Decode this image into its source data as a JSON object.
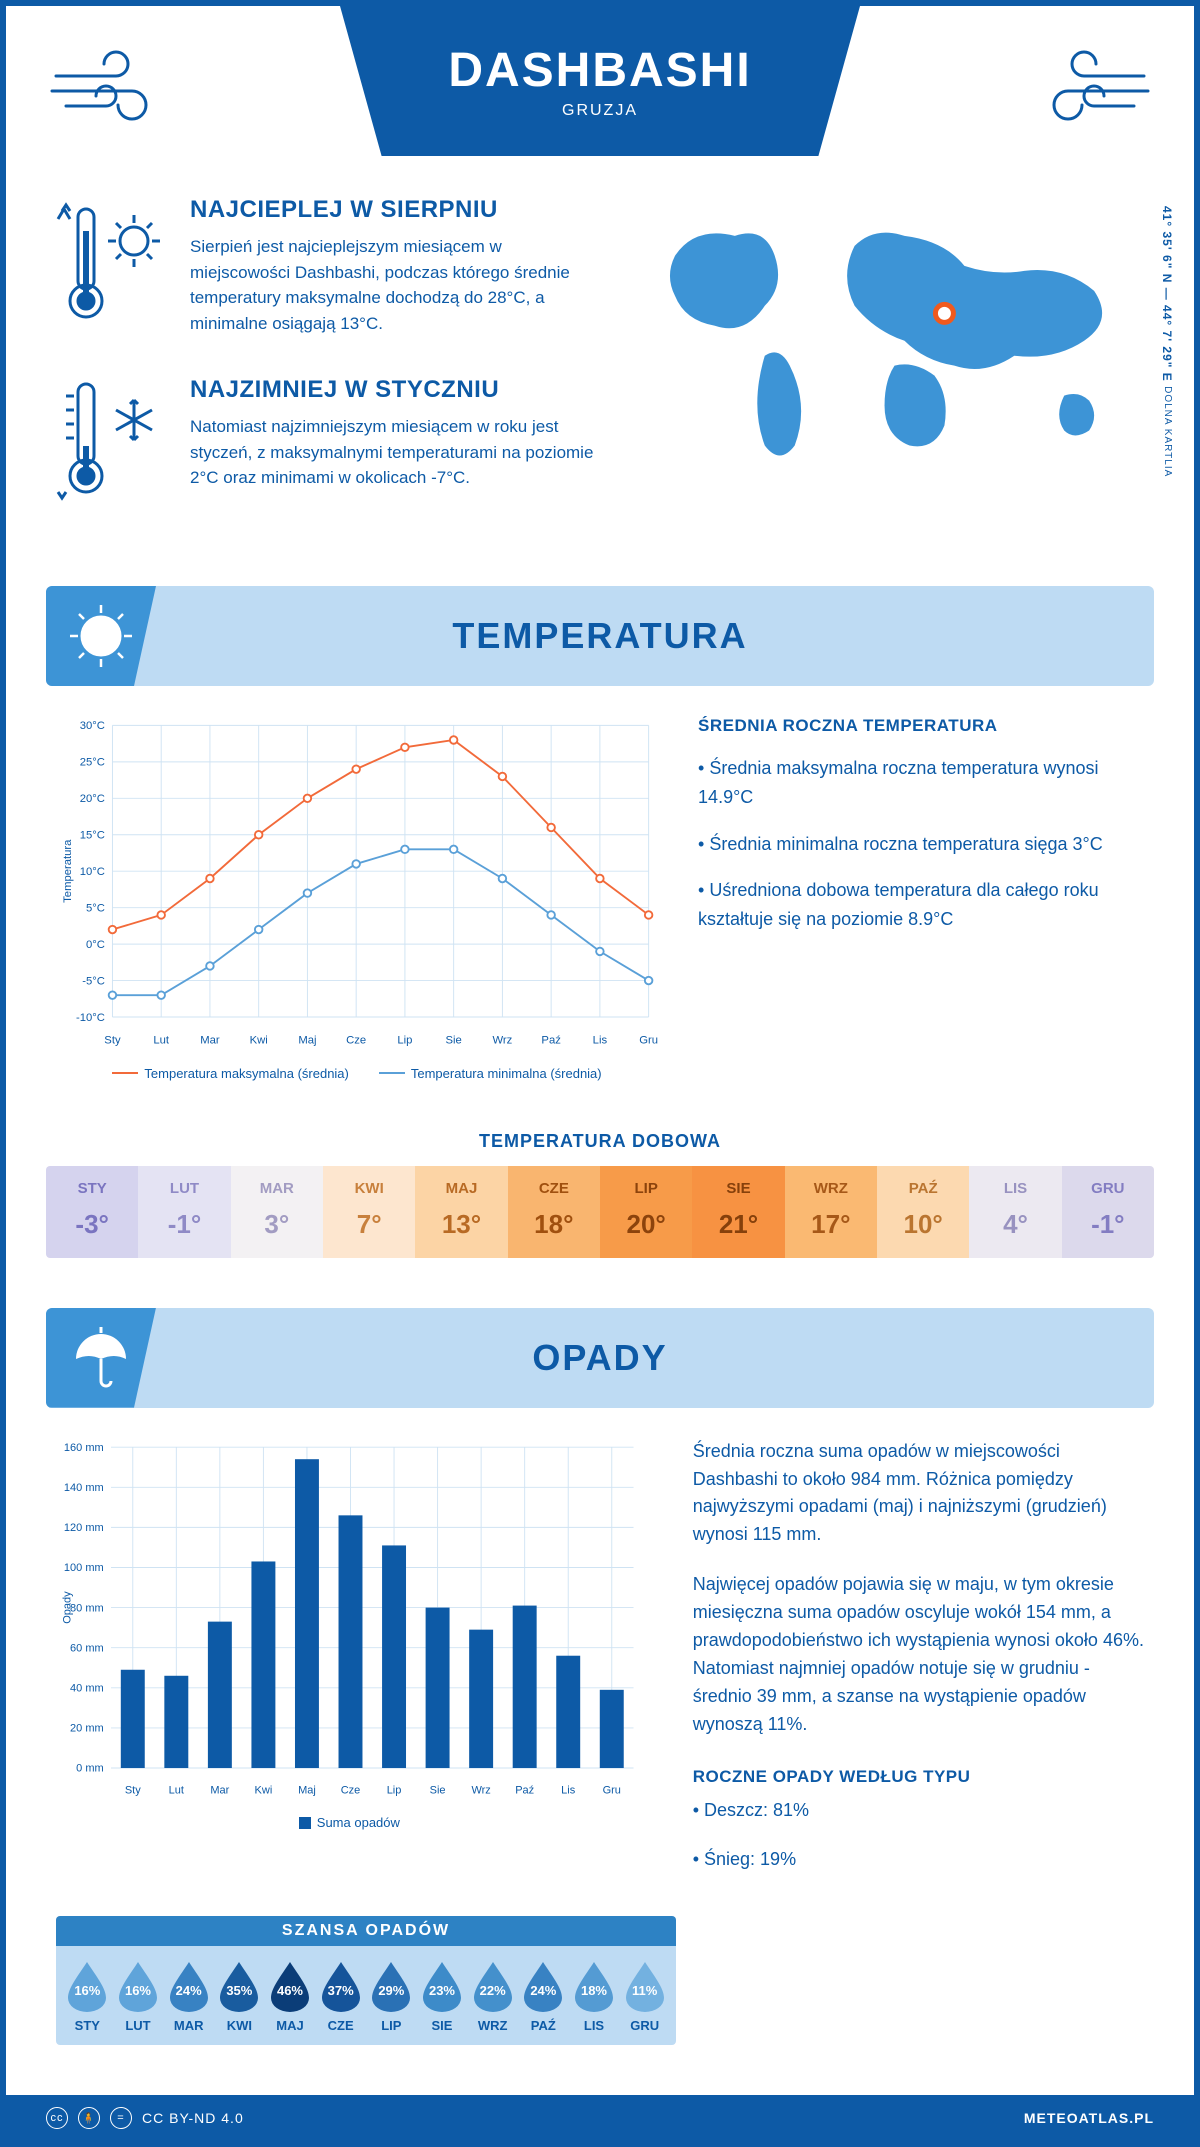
{
  "colors": {
    "primary": "#0d5aa6",
    "light_blue": "#bedbf3",
    "mid_blue": "#3d94d6",
    "accent_orange": "#f05a1e",
    "chart_orange": "#f26a3a",
    "chart_lblue": "#5aa0d8",
    "grid": "#cfe3f3"
  },
  "header": {
    "title": "DASHBASHI",
    "subtitle": "GRUZJA"
  },
  "facts": {
    "hot": {
      "title": "NAJCIEPLEJ W SIERPNIU",
      "text": "Sierpień jest najcieplejszym miesiącem w miejscowości Dashbashi, podczas którego średnie temperatury maksymalne dochodzą do 28°C, a minimalne osiągają 13°C."
    },
    "cold": {
      "title": "NAJZIMNIEJ W STYCZNIU",
      "text": "Natomiast najzimniejszym miesiącem w roku jest styczeń, z maksymalnymi temperaturami na poziomie 2°C oraz minimami w okolicach -7°C."
    }
  },
  "map": {
    "coords": "41° 35' 6\" N — 44° 7' 29\" E",
    "region": "DOLNA KARTLIA",
    "marker_x": 0.6,
    "marker_y": 0.42
  },
  "temperature_section": {
    "title": "TEMPERATURA",
    "stats_title": "ŚREDNIA ROCZNA TEMPERATURA",
    "stats": [
      "• Średnia maksymalna roczna temperatura wynosi 14.9°C",
      "• Średnia minimalna roczna temperatura sięga 3°C",
      "• Uśredniona dobowa temperatura dla całego roku kształtuje się na poziomie 8.9°C"
    ],
    "chart": {
      "months": [
        "Sty",
        "Lut",
        "Mar",
        "Kwi",
        "Maj",
        "Cze",
        "Lip",
        "Sie",
        "Wrz",
        "Paź",
        "Lis",
        "Gru"
      ],
      "ymin": -10,
      "ymax": 30,
      "ytick": 5,
      "ylabel": "Temperatura",
      "max_series": {
        "label": "Temperatura maksymalna (średnia)",
        "color": "#f26a3a",
        "values": [
          2,
          4,
          9,
          15,
          20,
          24,
          27,
          28,
          23,
          16,
          9,
          4
        ]
      },
      "min_series": {
        "label": "Temperatura minimalna (średnia)",
        "color": "#5aa0d8",
        "values": [
          -7,
          -7,
          -3,
          2,
          7,
          11,
          13,
          13,
          9,
          4,
          -1,
          -5
        ]
      }
    },
    "dobowa_title": "TEMPERATURA DOBOWA",
    "dobowa": {
      "months": [
        "STY",
        "LUT",
        "MAR",
        "KWI",
        "MAJ",
        "CZE",
        "LIP",
        "SIE",
        "WRZ",
        "PAŹ",
        "LIS",
        "GRU"
      ],
      "values": [
        "-3°",
        "-1°",
        "3°",
        "7°",
        "13°",
        "18°",
        "20°",
        "21°",
        "17°",
        "10°",
        "4°",
        "-1°"
      ],
      "cell_bg": [
        "#d5d3ee",
        "#e4e3f3",
        "#f3f1f3",
        "#fde6cf",
        "#fcd4a5",
        "#f9b56f",
        "#f79b49",
        "#f79242",
        "#fab972",
        "#fcd9b0",
        "#ece9f1",
        "#dcd9ec"
      ],
      "cell_fg": [
        "#7a74c0",
        "#8f8ac6",
        "#a29cc2",
        "#c8803c",
        "#b86a24",
        "#a0500f",
        "#8c430c",
        "#86400b",
        "#a65818",
        "#ba7530",
        "#9892c0",
        "#837dc2"
      ]
    }
  },
  "precip_section": {
    "title": "OPADY",
    "text1": "Średnia roczna suma opadów w miejscowości Dashbashi to około 984 mm. Różnica pomiędzy najwyższymi opadami (maj) i najniższymi (grudzień) wynosi 115 mm.",
    "text2": "Najwięcej opadów pojawia się w maju, w tym okresie miesięczna suma opadów oscyluje wokół 154 mm, a prawdopodobieństwo ich wystąpienia wynosi około 46%. Natomiast najmniej opadów notuje się w grudniu - średnio 39 mm, a szanse na wystąpienie opadów wynoszą 11%.",
    "type_title": "ROCZNE OPADY WEDŁUG TYPU",
    "types": [
      "• Deszcz: 81%",
      "• Śnieg: 19%"
    ],
    "chart": {
      "months": [
        "Sty",
        "Lut",
        "Mar",
        "Kwi",
        "Maj",
        "Cze",
        "Lip",
        "Sie",
        "Wrz",
        "Paź",
        "Lis",
        "Gru"
      ],
      "ymin": 0,
      "ymax": 160,
      "ytick": 20,
      "ylabel": "Opady",
      "legend": "Suma opadów",
      "values": [
        49,
        46,
        73,
        103,
        154,
        126,
        111,
        80,
        69,
        81,
        56,
        39
      ],
      "bar_color": "#0d5aa6"
    },
    "chance": {
      "title": "SZANSA OPADÓW",
      "months": [
        "STY",
        "LUT",
        "MAR",
        "KWI",
        "MAJ",
        "CZE",
        "LIP",
        "SIE",
        "WRZ",
        "PAŹ",
        "LIS",
        "GRU"
      ],
      "values": [
        "16%",
        "16%",
        "24%",
        "35%",
        "46%",
        "37%",
        "29%",
        "23%",
        "22%",
        "24%",
        "18%",
        "11%"
      ],
      "fill": [
        "#5fa4da",
        "#5fa4da",
        "#3882c3",
        "#195c9f",
        "#0b3d78",
        "#15549a",
        "#2a71b5",
        "#3d8bc9",
        "#4490cc",
        "#3882c3",
        "#549bd3",
        "#73b1e0"
      ]
    }
  },
  "footer": {
    "license": "CC BY-ND 4.0",
    "site": "METEOATLAS.PL"
  }
}
